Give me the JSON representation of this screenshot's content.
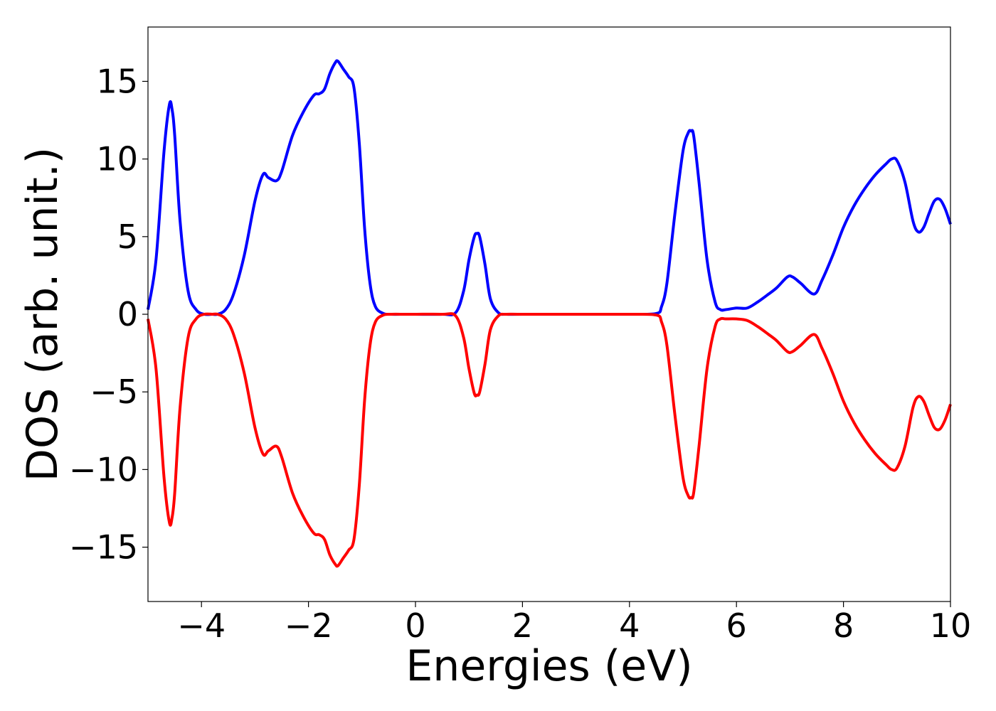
{
  "chart_data": {
    "type": "line",
    "title": "",
    "xlabel": "Energies (eV)",
    "ylabel": "DOS (arb. unit.)",
    "xlim": [
      -5,
      10
    ],
    "ylim": [
      -18.5,
      18.5
    ],
    "grid": false,
    "legend": "none",
    "x_ticks": [
      -4,
      -2,
      0,
      2,
      4,
      6,
      8,
      10
    ],
    "x_tick_labels": [
      "−4",
      "−2",
      "0",
      "2",
      "4",
      "6",
      "8",
      "10"
    ],
    "y_ticks": [
      15,
      10,
      5,
      0,
      -5,
      -10,
      -15
    ],
    "y_tick_labels": [
      "15",
      "10",
      "5",
      "0",
      "−5",
      "−10",
      "−15"
    ],
    "series": [
      {
        "color": "#0000ff",
        "x": [
          -5.0,
          -4.85,
          -4.7,
          -4.6,
          -4.55,
          -4.5,
          -4.4,
          -4.25,
          -4.1,
          -3.95,
          -3.8,
          -3.7,
          -3.55,
          -3.4,
          -3.2,
          -3.0,
          -2.85,
          -2.75,
          -2.6,
          -2.5,
          -2.3,
          -2.1,
          -1.9,
          -1.8,
          -1.7,
          -1.6,
          -1.5,
          -1.45,
          -1.35,
          -1.25,
          -1.15,
          -1.05,
          -0.95,
          -0.85,
          -0.75,
          -0.6,
          -0.45,
          -0.2,
          0.0,
          0.5,
          0.75,
          0.9,
          1.0,
          1.1,
          1.15,
          1.2,
          1.3,
          1.4,
          1.55,
          1.7,
          2.0,
          3.0,
          4.0,
          4.5,
          4.6,
          4.7,
          4.85,
          5.0,
          5.1,
          5.15,
          5.2,
          5.3,
          5.45,
          5.6,
          5.7,
          5.8,
          6.0,
          6.2,
          6.4,
          6.6,
          6.75,
          6.95,
          7.05,
          7.2,
          7.45,
          7.6,
          7.8,
          8.0,
          8.2,
          8.4,
          8.6,
          8.8,
          8.9,
          9.0,
          9.15,
          9.3,
          9.4,
          9.5,
          9.6,
          9.7,
          9.8,
          9.9,
          10.0
        ],
        "y": [
          0.3,
          3.5,
          10.5,
          13.5,
          13.2,
          11.5,
          6.0,
          1.5,
          0.3,
          0.0,
          0.0,
          0.0,
          0.3,
          1.3,
          3.8,
          7.3,
          9.0,
          8.8,
          8.6,
          9.2,
          11.5,
          13.0,
          14.1,
          14.2,
          14.5,
          15.5,
          16.2,
          16.3,
          15.8,
          15.3,
          14.6,
          11.0,
          5.5,
          2.0,
          0.5,
          0.05,
          0.0,
          0.0,
          0.0,
          0.0,
          0.1,
          1.5,
          3.5,
          5.0,
          5.2,
          5.0,
          3.2,
          1.0,
          0.1,
          0.0,
          0.0,
          0.0,
          0.0,
          0.05,
          0.5,
          2.0,
          6.5,
          10.5,
          11.7,
          11.8,
          11.5,
          8.5,
          3.5,
          0.8,
          0.3,
          0.3,
          0.4,
          0.4,
          0.8,
          1.3,
          1.7,
          2.4,
          2.4,
          2.0,
          1.3,
          2.2,
          3.8,
          5.6,
          7.0,
          8.1,
          9.0,
          9.7,
          10.0,
          9.9,
          8.5,
          6.0,
          5.3,
          5.6,
          6.5,
          7.3,
          7.4,
          6.8,
          5.8
        ]
      },
      {
        "color": "#ff0000",
        "x": [
          -5.0,
          -4.85,
          -4.7,
          -4.6,
          -4.55,
          -4.5,
          -4.4,
          -4.25,
          -4.1,
          -3.95,
          -3.8,
          -3.7,
          -3.55,
          -3.4,
          -3.2,
          -3.0,
          -2.85,
          -2.75,
          -2.6,
          -2.5,
          -2.3,
          -2.1,
          -1.9,
          -1.8,
          -1.7,
          -1.6,
          -1.5,
          -1.45,
          -1.35,
          -1.25,
          -1.15,
          -1.05,
          -0.95,
          -0.85,
          -0.75,
          -0.6,
          -0.45,
          -0.2,
          0.0,
          0.5,
          0.75,
          0.9,
          1.0,
          1.1,
          1.15,
          1.2,
          1.3,
          1.4,
          1.55,
          1.7,
          2.0,
          3.0,
          4.0,
          4.5,
          4.6,
          4.7,
          4.85,
          5.0,
          5.1,
          5.15,
          5.2,
          5.3,
          5.45,
          5.6,
          5.7,
          5.8,
          6.0,
          6.2,
          6.4,
          6.6,
          6.75,
          6.95,
          7.05,
          7.2,
          7.45,
          7.6,
          7.8,
          8.0,
          8.2,
          8.4,
          8.6,
          8.8,
          8.9,
          9.0,
          9.15,
          9.3,
          9.4,
          9.5,
          9.6,
          9.7,
          9.8,
          9.9,
          10.0
        ],
        "y": [
          -0.3,
          -3.5,
          -10.5,
          -13.4,
          -13.1,
          -11.5,
          -6.0,
          -1.5,
          -0.3,
          0.0,
          0.0,
          0.0,
          -0.3,
          -1.3,
          -3.8,
          -7.3,
          -9.0,
          -8.8,
          -8.5,
          -9.2,
          -11.5,
          -13.0,
          -14.1,
          -14.2,
          -14.5,
          -15.5,
          -16.1,
          -16.2,
          -15.7,
          -15.2,
          -14.5,
          -11.0,
          -5.5,
          -2.0,
          -0.5,
          -0.05,
          0.0,
          0.0,
          0.0,
          0.0,
          -0.1,
          -1.5,
          -3.5,
          -5.1,
          -5.2,
          -5.0,
          -3.2,
          -1.0,
          -0.1,
          0.0,
          0.0,
          0.0,
          0.0,
          -0.05,
          -0.5,
          -2.0,
          -6.5,
          -10.5,
          -11.7,
          -11.8,
          -11.5,
          -8.5,
          -3.5,
          -0.8,
          -0.3,
          -0.3,
          -0.3,
          -0.4,
          -0.8,
          -1.3,
          -1.7,
          -2.4,
          -2.4,
          -2.0,
          -1.3,
          -2.2,
          -3.8,
          -5.6,
          -7.0,
          -8.1,
          -9.0,
          -9.7,
          -10.0,
          -9.9,
          -8.5,
          -6.0,
          -5.3,
          -5.6,
          -6.5,
          -7.3,
          -7.4,
          -6.8,
          -5.8
        ]
      }
    ]
  }
}
